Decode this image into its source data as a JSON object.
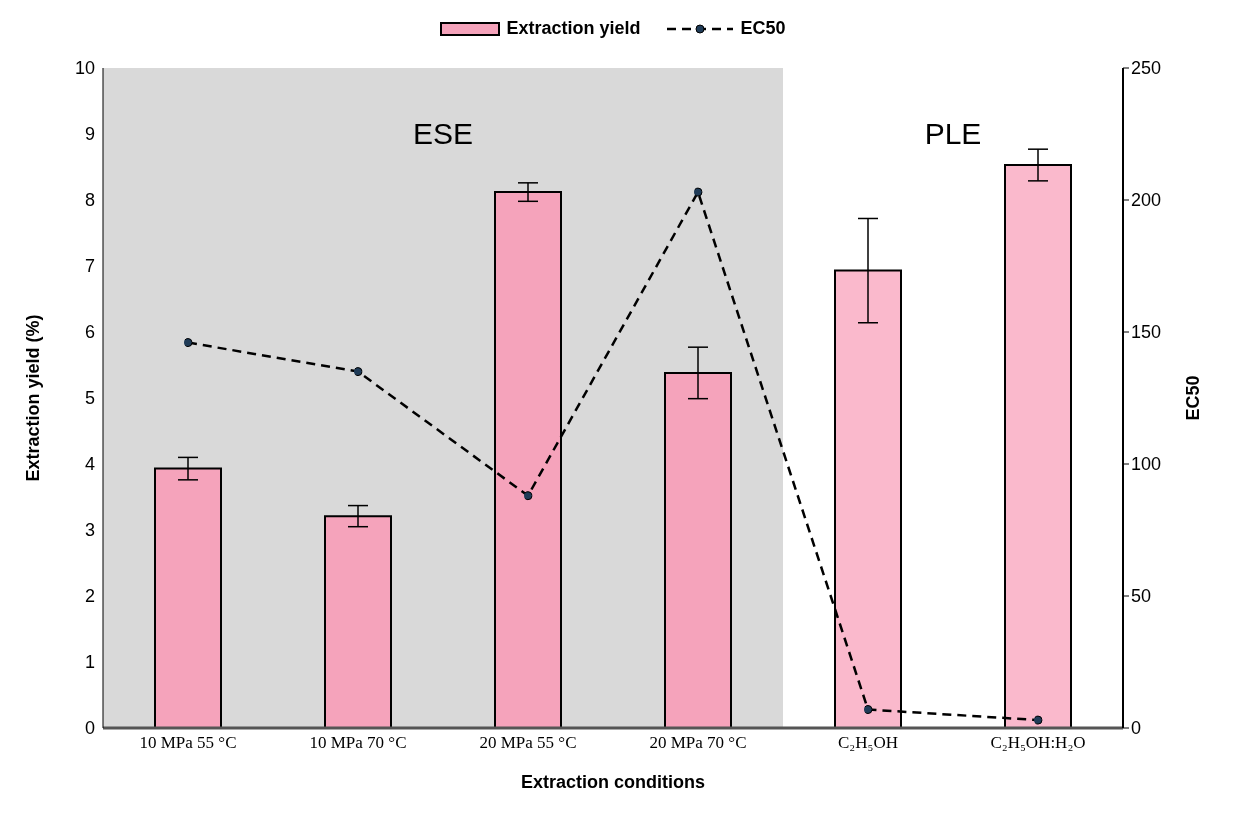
{
  "chart_data": {
    "type": "bar",
    "categories": [
      "10 MPa 55 °C",
      "10 MPa 70 °C",
      "20 MPa 55 °C",
      "20 MPa 70 °C",
      "C₂H₅OH",
      "C₂H₅OH:H₂O"
    ],
    "xlabel": "Extraction conditions",
    "ylabel": "Extraction yield (%)",
    "y2label": "EC50",
    "ylim": [
      0,
      10
    ],
    "yticks": [
      0,
      1,
      2,
      3,
      4,
      5,
      6,
      7,
      8,
      9,
      10
    ],
    "y2lim": [
      0,
      250
    ],
    "y2ticks": [
      0,
      50,
      100,
      150,
      200,
      250
    ],
    "legend": "top",
    "bands": [
      {
        "axis": "x",
        "from": "10 MPa 55 °C",
        "to": "20 MPa 70 °C",
        "label": "ESE",
        "color": "#d9d9d9"
      }
    ],
    "annotations": [
      "PLE"
    ],
    "series": [
      {
        "name": "Extraction yield",
        "color": "#f5a3bb",
        "colors": [
          "#f5a3bb",
          "#f5a3bb",
          "#f5a3bb",
          "#f5a3bb",
          "#fab9cc",
          "#fab9cc"
        ],
        "values": [
          3.93,
          3.21,
          8.12,
          5.38,
          6.93,
          8.53
        ],
        "errors": [
          0.17,
          0.16,
          0.14,
          0.39,
          0.79,
          0.24
        ]
      },
      {
        "name": "EC50",
        "type": "line",
        "axis": "y2",
        "color": "#000000",
        "marker": "circle",
        "line_style": "dashed",
        "values": [
          146,
          135,
          88,
          203,
          7,
          3
        ]
      }
    ]
  }
}
